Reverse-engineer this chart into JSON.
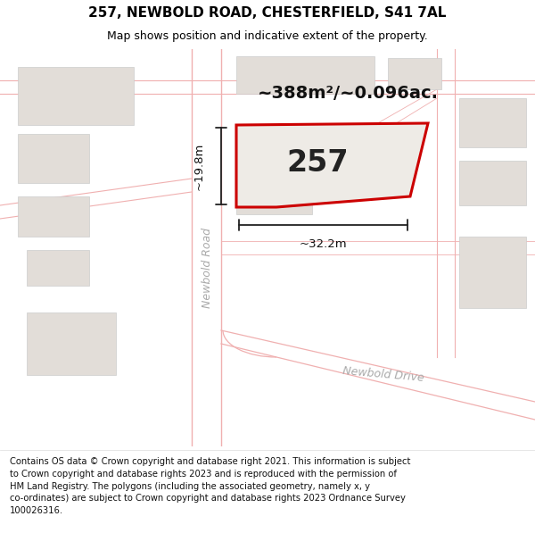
{
  "title_line1": "257, NEWBOLD ROAD, CHESTERFIELD, S41 7AL",
  "title_line2": "Map shows position and indicative extent of the property.",
  "footer_lines": [
    "Contains OS data © Crown copyright and database right 2021. This information is subject",
    "to Crown copyright and database rights 2023 and is reproduced with the permission of",
    "HM Land Registry. The polygons (including the associated geometry, namely x, y",
    "co-ordinates) are subject to Crown copyright and database rights 2023 Ordnance Survey",
    "100026316."
  ],
  "area_label": "~388m²/~0.096ac.",
  "property_number": "257",
  "dim_width": "~32.2m",
  "dim_height": "~19.8m",
  "road_label_left": "Newbold Road",
  "road_label_bottom": "Newbold Drive",
  "map_bg": "#f7f5f2",
  "property_fill": "#eeebe6",
  "property_edge": "#cc0000",
  "road_line_color": "#f0b0b0",
  "road_line_color2": "#e89898",
  "block_fill": "#e2ddd8",
  "block_edge": "#cccccc",
  "title_fontsize": 11,
  "subtitle_fontsize": 9,
  "footer_fontsize": 7.2,
  "title_bg": "#ffffff",
  "footer_bg": "#ffffff"
}
